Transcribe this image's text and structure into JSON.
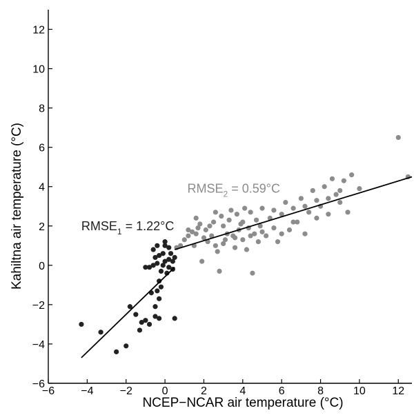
{
  "chart_data": {
    "type": "scatter",
    "title": "",
    "xlabel": "NCEP−NCAR air temperature (°C)",
    "ylabel": "Kahiltna air temperature (°C)",
    "xlim": [
      -6,
      12.7
    ],
    "ylim": [
      -6,
      13
    ],
    "xticks": [
      -6,
      -4,
      -2,
      0,
      2,
      4,
      6,
      8,
      10,
      12
    ],
    "yticks": [
      -6,
      -4,
      -2,
      0,
      2,
      4,
      6,
      8,
      10,
      12
    ],
    "xtick_labels": [
      "−6",
      "−4",
      "−2",
      "0",
      "2",
      "4",
      "6",
      "8",
      "10",
      "12"
    ],
    "ytick_labels": [
      "−6",
      "−4",
      "−2",
      "0",
      "2",
      "4",
      "6",
      "8",
      "10",
      "12"
    ],
    "grid": false,
    "annotations": [
      {
        "base": "RMSE",
        "sub": "1",
        "rest": " = 1.22°C",
        "x": -4.3,
        "y": 2.0,
        "color": "#222222"
      },
      {
        "base": "RMSE",
        "sub": "2",
        "rest": " = 0.59°C",
        "x": 1.15,
        "y": 3.9,
        "color": "#8c8c8c"
      }
    ],
    "series": [
      {
        "color": "#222222",
        "points": [
          [
            -4.3,
            -3.0
          ],
          [
            -3.3,
            -3.4
          ],
          [
            -2.5,
            -4.4
          ],
          [
            -2.0,
            -4.1
          ],
          [
            -1.8,
            -2.1
          ],
          [
            -1.5,
            -2.5
          ],
          [
            -1.3,
            -3.3
          ],
          [
            -1.2,
            -2.9
          ],
          [
            -1.0,
            -2.8
          ],
          [
            -0.8,
            -3.0
          ],
          [
            -0.5,
            -2.6
          ],
          [
            -0.3,
            -2.7
          ],
          [
            -0.5,
            -2.1
          ],
          [
            -0.3,
            -1.7
          ],
          [
            -0.7,
            -1.4
          ],
          [
            -0.2,
            -1.1
          ],
          [
            -0.4,
            -1.3
          ],
          [
            -0.3,
            -0.8
          ],
          [
            -1.0,
            -0.1
          ],
          [
            -0.8,
            -0.1
          ],
          [
            -0.6,
            0.0
          ],
          [
            -0.4,
            0.1
          ],
          [
            -0.2,
            -0.3
          ],
          [
            0.1,
            -0.4
          ],
          [
            -0.5,
            0.4
          ],
          [
            -0.3,
            0.5
          ],
          [
            -0.1,
            0.6
          ],
          [
            0.2,
            0.3
          ],
          [
            0.4,
            0.2
          ],
          [
            0.5,
            0.4
          ],
          [
            -0.6,
            0.8
          ],
          [
            -0.4,
            1.0
          ],
          [
            0.0,
            1.0
          ],
          [
            0.2,
            0.9
          ],
          [
            0.0,
            0.2
          ],
          [
            0.2,
            -0.1
          ],
          [
            0.4,
            -0.2
          ],
          [
            -0.1,
            0.0
          ],
          [
            0.0,
            1.2
          ],
          [
            0.3,
            0.6
          ],
          [
            0.5,
            -2.7
          ]
        ]
      },
      {
        "color": "#8c8c8c",
        "points": [
          [
            0.6,
            0.9
          ],
          [
            0.8,
            1.0
          ],
          [
            1.0,
            1.3
          ],
          [
            1.2,
            1.5
          ],
          [
            1.4,
            1.7
          ],
          [
            1.5,
            1.0
          ],
          [
            1.6,
            1.6
          ],
          [
            1.7,
            1.9
          ],
          [
            1.8,
            2.1
          ],
          [
            1.9,
            0.2
          ],
          [
            2.0,
            1.4
          ],
          [
            2.1,
            1.8
          ],
          [
            2.2,
            1.2
          ],
          [
            2.3,
            2.0
          ],
          [
            2.4,
            1.5
          ],
          [
            2.5,
            2.2
          ],
          [
            2.6,
            1.0
          ],
          [
            2.7,
            0.7
          ],
          [
            2.8,
            -0.3
          ],
          [
            2.9,
            2.5
          ],
          [
            3.0,
            2.0
          ],
          [
            3.1,
            1.3
          ],
          [
            3.2,
            1.6
          ],
          [
            3.3,
            2.3
          ],
          [
            3.4,
            2.8
          ],
          [
            3.5,
            1.5
          ],
          [
            3.6,
            0.9
          ],
          [
            3.7,
            2.6
          ],
          [
            3.8,
            1.8
          ],
          [
            3.9,
            2.1
          ],
          [
            4.0,
            1.3
          ],
          [
            4.1,
            2.9
          ],
          [
            4.2,
            0.8
          ],
          [
            4.3,
            1.9
          ],
          [
            4.4,
            2.7
          ],
          [
            4.5,
            -0.4
          ],
          [
            4.6,
            1.6
          ],
          [
            4.7,
            2.3
          ],
          [
            4.8,
            1.2
          ],
          [
            4.9,
            2.0
          ],
          [
            5.0,
            2.9
          ],
          [
            5.2,
            1.5
          ],
          [
            5.4,
            2.4
          ],
          [
            5.6,
            1.9
          ],
          [
            5.8,
            1.2
          ],
          [
            6.0,
            2.6
          ],
          [
            6.2,
            3.2
          ],
          [
            6.4,
            1.8
          ],
          [
            6.6,
            2.9
          ],
          [
            6.8,
            2.2
          ],
          [
            7.0,
            3.4
          ],
          [
            7.2,
            1.6
          ],
          [
            7.4,
            2.7
          ],
          [
            7.6,
            3.8
          ],
          [
            7.8,
            2.4
          ],
          [
            8.0,
            3.0
          ],
          [
            8.2,
            4.0
          ],
          [
            8.4,
            2.6
          ],
          [
            8.6,
            4.4
          ],
          [
            8.8,
            3.6
          ],
          [
            9.0,
            3.2
          ],
          [
            9.2,
            4.3
          ],
          [
            9.4,
            2.7
          ],
          [
            9.6,
            4.6
          ],
          [
            10.0,
            3.9
          ],
          [
            12.0,
            6.5
          ],
          [
            12.5,
            4.5
          ],
          [
            1.2,
            1.8
          ],
          [
            1.6,
            2.4
          ],
          [
            2.6,
            2.7
          ],
          [
            3.0,
            1.1
          ],
          [
            3.6,
            1.4
          ],
          [
            4.0,
            2.2
          ],
          [
            4.4,
            1.5
          ],
          [
            5.0,
            1.7
          ],
          [
            5.6,
            2.8
          ],
          [
            6.0,
            1.6
          ],
          [
            6.6,
            2.2
          ],
          [
            7.2,
            3.0
          ],
          [
            7.8,
            3.3
          ],
          [
            8.4,
            3.4
          ],
          [
            9.0,
            3.8
          ]
        ]
      }
    ],
    "fit_lines": [
      {
        "color": "#000000",
        "x": [
          -4.3,
          0.5
        ],
        "y": [
          -4.7,
          -0.1
        ]
      },
      {
        "color": "#000000",
        "x": [
          0.5,
          12.7
        ],
        "y": [
          0.8,
          4.5
        ]
      }
    ]
  }
}
